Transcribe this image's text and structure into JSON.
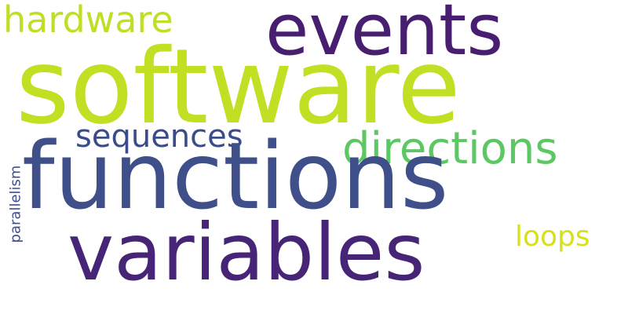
{
  "words": [
    {
      "key": "hardware",
      "text": "hardware",
      "color": "#bddf26"
    },
    {
      "key": "events",
      "text": "events",
      "color": "#481f70"
    },
    {
      "key": "software",
      "text": "software",
      "color": "#c2df23"
    },
    {
      "key": "sequences",
      "text": "sequences",
      "color": "#3a4c8a"
    },
    {
      "key": "directions",
      "text": "directions",
      "color": "#5cc863"
    },
    {
      "key": "functions",
      "text": "functions",
      "color": "#3e4f8a"
    },
    {
      "key": "loops",
      "text": "loops",
      "color": "#d5e21a"
    },
    {
      "key": "variables",
      "text": "variables",
      "color": "#472576"
    },
    {
      "key": "parallelism",
      "text": "parallelism",
      "color": "#3e4e8a"
    }
  ]
}
